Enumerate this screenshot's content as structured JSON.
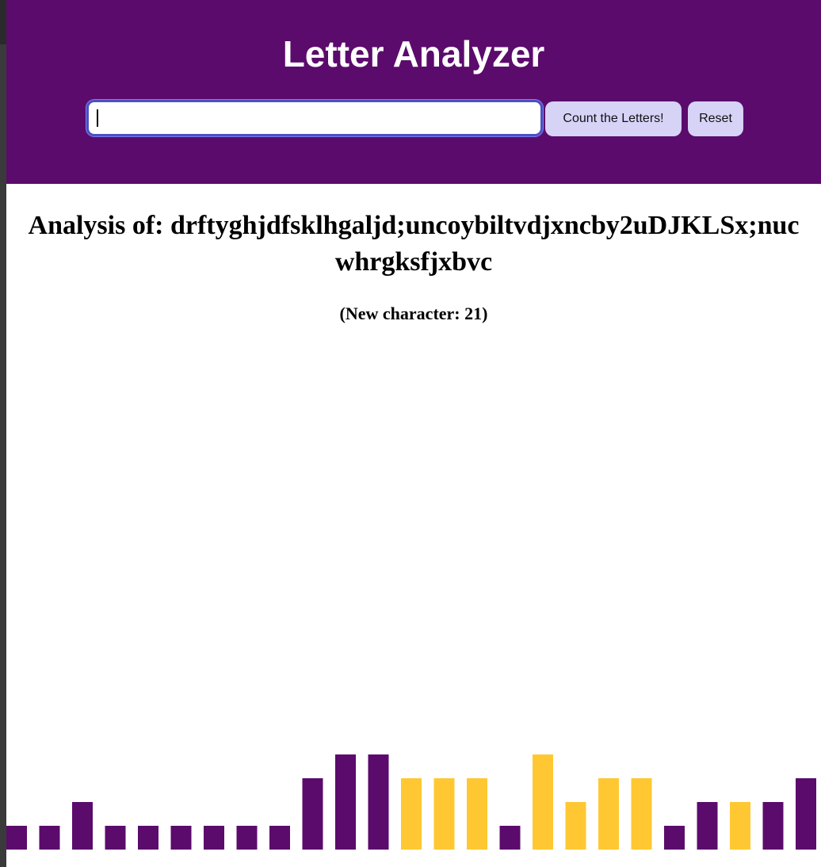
{
  "header": {
    "title": "Letter Analyzer",
    "input_value": "",
    "count_button_label": "Count the Letters!",
    "reset_button_label": "Reset"
  },
  "analysis": {
    "label": "Analysis of: drftyghjdfsklhgaljd;uncoybiltvdjxncby2uDJKLSx;nucwhrgksfjxbvc",
    "new_character": "(New character: 21)"
  },
  "colors": {
    "header_bg": "#5b0b6c",
    "bar_purple": "#5b0b6c",
    "bar_yellow": "#ffc832",
    "button_bg": "#d6d3f7"
  },
  "chart_data": {
    "type": "bar",
    "values": [
      1,
      1,
      2,
      1,
      1,
      1,
      1,
      1,
      1,
      3,
      4,
      4,
      3,
      3,
      3,
      1,
      4,
      2,
      3,
      3,
      1,
      2,
      2,
      2,
      3
    ],
    "highlight": [
      false,
      false,
      false,
      false,
      false,
      false,
      false,
      false,
      false,
      false,
      false,
      false,
      true,
      true,
      true,
      false,
      true,
      true,
      true,
      true,
      false,
      false,
      true,
      false,
      false
    ]
  }
}
